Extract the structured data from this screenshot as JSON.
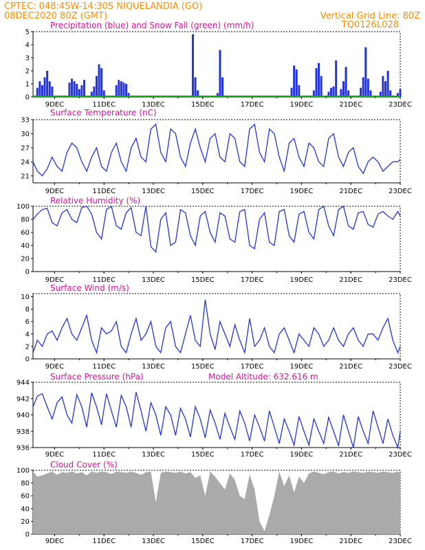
{
  "header": {
    "line1_left": "CPTEC:   048:45W-14:30S   NIQUELANDIA (GO)",
    "line2_left": "08DEC2020 80Z (GMT)",
    "line1_right": "Vertical Grid Line: 80Z",
    "line2_right": "TQ0126L028"
  },
  "colors": {
    "header": "#ff8c00",
    "title": "#e0119c",
    "line": "#2233dd",
    "snow": "#11aa11",
    "cloud": "#aaaaaa"
  },
  "x_ticks": [
    "9DEC",
    "11DEC",
    "13DEC",
    "15DEC",
    "17DEC",
    "19DEC",
    "21DEC",
    "23DEC"
  ],
  "chart_data": [
    {
      "id": "precip",
      "type": "bar",
      "title": "Precipitation (blue) and Snow Fall (green) (mm/h)",
      "ylim": [
        0,
        5
      ],
      "yticks": [
        "0",
        "1",
        "2",
        "3",
        "4",
        "5"
      ],
      "x_range_days": [
        8.125,
        23.0
      ],
      "series": [
        {
          "name": "Precipitation",
          "x": [
            8.3,
            8.4,
            8.5,
            8.6,
            8.7,
            8.8,
            8.9,
            9.6,
            9.7,
            9.8,
            9.9,
            10.0,
            10.1,
            10.2,
            10.5,
            10.6,
            10.7,
            10.8,
            10.9,
            11.0,
            11.5,
            11.6,
            11.7,
            11.8,
            11.9,
            12.0,
            14.6,
            14.7,
            14.8,
            15.6,
            15.7,
            15.8,
            18.6,
            18.7,
            18.8,
            18.9,
            19.5,
            19.6,
            19.7,
            19.8,
            20.1,
            20.2,
            20.3,
            20.4,
            20.6,
            20.7,
            20.8,
            20.9,
            21.4,
            21.5,
            21.6,
            21.7,
            21.8,
            22.2,
            22.3,
            22.4,
            22.5,
            22.6,
            22.9,
            23.0
          ],
          "values": [
            0.7,
            1.2,
            0.9,
            1.5,
            2.0,
            1.2,
            0.8,
            1.1,
            1.4,
            1.2,
            1.0,
            0.6,
            0.9,
            1.3,
            0.4,
            0.8,
            1.6,
            2.5,
            2.2,
            0.5,
            0.9,
            1.3,
            1.2,
            1.1,
            1.0,
            0.3,
            4.8,
            1.5,
            0.5,
            0.3,
            3.6,
            1.5,
            0.7,
            2.4,
            2.1,
            0.9,
            0.5,
            2.2,
            2.6,
            1.6,
            0.4,
            0.7,
            0.8,
            2.8,
            0.6,
            1.2,
            2.3,
            0.5,
            0.7,
            1.5,
            3.8,
            1.4,
            0.5,
            0.4,
            1.6,
            1.2,
            2.0,
            0.5,
            0.3,
            0.6
          ]
        },
        {
          "name": "Snow Fall",
          "values": [
            0
          ]
        }
      ]
    },
    {
      "id": "temp",
      "type": "line",
      "title": "Surface Temperature (nC)",
      "ylim": [
        19.5,
        33
      ],
      "yticks": [
        "21",
        "24",
        "27",
        "30",
        "33"
      ],
      "x": [
        8.125,
        8.3,
        8.5,
        8.7,
        8.9,
        9.1,
        9.3,
        9.5,
        9.7,
        9.9,
        10.1,
        10.3,
        10.5,
        10.7,
        10.9,
        11.1,
        11.3,
        11.5,
        11.7,
        11.9,
        12.1,
        12.3,
        12.5,
        12.7,
        12.9,
        13.1,
        13.3,
        13.5,
        13.7,
        13.9,
        14.1,
        14.3,
        14.5,
        14.7,
        14.9,
        15.1,
        15.3,
        15.5,
        15.7,
        15.9,
        16.1,
        16.3,
        16.5,
        16.7,
        16.9,
        17.1,
        17.3,
        17.5,
        17.7,
        17.9,
        18.1,
        18.3,
        18.5,
        18.7,
        18.9,
        19.1,
        19.3,
        19.5,
        19.7,
        19.9,
        20.1,
        20.3,
        20.5,
        20.7,
        20.9,
        21.1,
        21.3,
        21.5,
        21.7,
        21.9,
        22.1,
        22.3,
        22.5,
        22.7,
        22.9,
        23.0
      ],
      "values": [
        24,
        22,
        21,
        22.5,
        25,
        23,
        22,
        26,
        28,
        27,
        24,
        22,
        25,
        27,
        23,
        22,
        26,
        28,
        24,
        22,
        27,
        29,
        25,
        24,
        31,
        32,
        26,
        24,
        31,
        30,
        25,
        23,
        28,
        31,
        27,
        24,
        29,
        30,
        25,
        24,
        30,
        29,
        24,
        23,
        31,
        32,
        26,
        24,
        31,
        30,
        25,
        22,
        28,
        29,
        25,
        23,
        28,
        27,
        24,
        23,
        29,
        30,
        25,
        23,
        26,
        27,
        23,
        21.5,
        24,
        25,
        24,
        22,
        23,
        24,
        24,
        24.5
      ]
    },
    {
      "id": "rh",
      "type": "line",
      "title": "Relative Humidity (%)",
      "ylim": [
        0,
        100
      ],
      "yticks": [
        "0",
        "20",
        "40",
        "60",
        "80",
        "100"
      ],
      "x": [
        8.125,
        8.3,
        8.5,
        8.7,
        8.9,
        9.1,
        9.3,
        9.5,
        9.7,
        9.9,
        10.1,
        10.3,
        10.5,
        10.7,
        10.9,
        11.1,
        11.3,
        11.5,
        11.7,
        11.9,
        12.1,
        12.3,
        12.5,
        12.7,
        12.9,
        13.1,
        13.3,
        13.5,
        13.7,
        13.9,
        14.1,
        14.3,
        14.5,
        14.7,
        14.9,
        15.1,
        15.3,
        15.5,
        15.7,
        15.9,
        16.1,
        16.3,
        16.5,
        16.7,
        16.9,
        17.1,
        17.3,
        17.5,
        17.7,
        17.9,
        18.1,
        18.3,
        18.5,
        18.7,
        18.9,
        19.1,
        19.3,
        19.5,
        19.7,
        19.9,
        20.1,
        20.3,
        20.5,
        20.7,
        20.9,
        21.1,
        21.3,
        21.5,
        21.7,
        21.9,
        22.1,
        22.3,
        22.5,
        22.7,
        22.9,
        23.0
      ],
      "values": [
        80,
        88,
        95,
        97,
        75,
        70,
        90,
        95,
        80,
        75,
        98,
        100,
        88,
        60,
        50,
        95,
        100,
        70,
        65,
        90,
        98,
        60,
        55,
        100,
        38,
        30,
        80,
        90,
        40,
        45,
        95,
        90,
        55,
        40,
        85,
        92,
        60,
        45,
        90,
        85,
        50,
        45,
        92,
        95,
        40,
        35,
        80,
        90,
        45,
        40,
        92,
        95,
        55,
        45,
        88,
        92,
        60,
        50,
        95,
        100,
        70,
        55,
        95,
        100,
        70,
        65,
        90,
        92,
        72,
        68,
        88,
        92,
        85,
        80,
        92,
        85
      ]
    },
    {
      "id": "wind",
      "type": "line",
      "title": "Surface Wind (m/s)",
      "ylim": [
        0,
        10.5
      ],
      "yticks": [
        "0",
        "2",
        "4",
        "6",
        "8",
        "10"
      ],
      "x": [
        8.125,
        8.3,
        8.5,
        8.7,
        8.9,
        9.1,
        9.3,
        9.5,
        9.7,
        9.9,
        10.1,
        10.3,
        10.5,
        10.7,
        10.9,
        11.1,
        11.3,
        11.5,
        11.7,
        11.9,
        12.1,
        12.3,
        12.5,
        12.7,
        12.9,
        13.1,
        13.3,
        13.5,
        13.7,
        13.9,
        14.1,
        14.3,
        14.5,
        14.7,
        14.9,
        15.1,
        15.3,
        15.5,
        15.7,
        15.9,
        16.1,
        16.3,
        16.5,
        16.7,
        16.9,
        17.1,
        17.3,
        17.5,
        17.7,
        17.9,
        18.1,
        18.3,
        18.5,
        18.7,
        18.9,
        19.1,
        19.3,
        19.5,
        19.7,
        19.9,
        20.1,
        20.3,
        20.5,
        20.7,
        20.9,
        21.1,
        21.3,
        21.5,
        21.7,
        21.9,
        22.1,
        22.3,
        22.5,
        22.7,
        22.9,
        23.0
      ],
      "values": [
        1,
        3,
        2,
        4,
        4.5,
        3,
        5,
        6.5,
        4,
        3,
        5,
        7,
        3,
        1,
        5,
        4,
        4.5,
        6,
        2,
        1,
        4,
        6.5,
        3,
        4,
        6,
        2,
        1,
        5,
        6,
        2,
        1,
        4,
        7,
        3,
        2,
        9.5,
        4,
        1.5,
        6,
        4,
        2,
        5.5,
        3,
        1,
        6.5,
        2,
        3,
        5,
        2,
        1,
        4,
        5,
        3,
        1,
        4,
        3,
        2,
        5,
        4,
        2,
        3,
        5,
        3,
        2,
        4,
        5,
        3,
        2,
        4,
        4,
        3,
        5,
        6.5,
        3,
        1,
        2
      ]
    },
    {
      "id": "pressure",
      "type": "line",
      "title": "Surface Pressure (hPa)",
      "annotation": "Model Altitude: 632.616 m",
      "ylim": [
        936,
        944
      ],
      "yticks": [
        "936",
        "938",
        "940",
        "942",
        "944"
      ],
      "x": [
        8.125,
        8.3,
        8.5,
        8.7,
        8.9,
        9.1,
        9.3,
        9.5,
        9.7,
        9.9,
        10.1,
        10.3,
        10.5,
        10.7,
        10.9,
        11.1,
        11.3,
        11.5,
        11.7,
        11.9,
        12.1,
        12.3,
        12.5,
        12.7,
        12.9,
        13.1,
        13.3,
        13.5,
        13.7,
        13.9,
        14.1,
        14.3,
        14.5,
        14.7,
        14.9,
        15.1,
        15.3,
        15.5,
        15.7,
        15.9,
        16.1,
        16.3,
        16.5,
        16.7,
        16.9,
        17.1,
        17.3,
        17.5,
        17.7,
        17.9,
        18.1,
        18.3,
        18.5,
        18.7,
        18.9,
        19.1,
        19.3,
        19.5,
        19.7,
        19.9,
        20.1,
        20.3,
        20.5,
        20.7,
        20.9,
        21.1,
        21.3,
        21.5,
        21.7,
        21.9,
        22.1,
        22.3,
        22.5,
        22.7,
        22.9,
        23.0
      ],
      "values": [
        941,
        942.3,
        942.6,
        941,
        939.5,
        941.5,
        942.2,
        940,
        939,
        942.5,
        941,
        938.5,
        942.7,
        941,
        938.8,
        942.6,
        940.5,
        938.5,
        942.4,
        941,
        938.5,
        942.8,
        940.5,
        938,
        941.5,
        940,
        937.5,
        941,
        940,
        937.5,
        940.8,
        939.5,
        937.3,
        941,
        939.5,
        937.2,
        940.6,
        939,
        937,
        940.2,
        938.5,
        937,
        940.5,
        939,
        936.8,
        940,
        938.5,
        936.8,
        940.5,
        938.5,
        936.5,
        939.5,
        938,
        936.3,
        939.8,
        938,
        936.3,
        939.5,
        938,
        936.5,
        939.7,
        938,
        936.2,
        940,
        938,
        936,
        939.8,
        938,
        936.5,
        940.5,
        938.5,
        936.5,
        939.5,
        937.5,
        936,
        938
      ]
    },
    {
      "id": "cloud",
      "type": "area",
      "title": "Cloud Cover (%)",
      "ylim": [
        0,
        100
      ],
      "yticks": [
        "0",
        "20",
        "40",
        "60",
        "80",
        "100"
      ],
      "x": [
        8.125,
        8.3,
        8.5,
        8.7,
        8.9,
        9.1,
        9.3,
        9.5,
        9.7,
        9.9,
        10.1,
        10.3,
        10.5,
        10.7,
        10.9,
        11.1,
        11.3,
        11.5,
        11.7,
        11.9,
        12.1,
        12.3,
        12.5,
        12.7,
        12.9,
        13.1,
        13.3,
        13.5,
        13.7,
        13.9,
        14.1,
        14.3,
        14.5,
        14.7,
        14.9,
        15.1,
        15.3,
        15.5,
        15.7,
        15.9,
        16.1,
        16.3,
        16.5,
        16.7,
        16.9,
        17.1,
        17.3,
        17.5,
        17.7,
        17.9,
        18.1,
        18.3,
        18.5,
        18.7,
        18.9,
        19.1,
        19.3,
        19.5,
        19.7,
        19.9,
        20.1,
        20.3,
        20.5,
        20.7,
        20.9,
        21.1,
        21.3,
        21.5,
        21.7,
        21.9,
        22.1,
        22.3,
        22.5,
        22.7,
        22.9,
        23.0
      ],
      "values": [
        98,
        90,
        92,
        95,
        98,
        93,
        97,
        96,
        98,
        95,
        97,
        92,
        98,
        96,
        98,
        97,
        94,
        98,
        97,
        96,
        98,
        96,
        93,
        97,
        98,
        50,
        96,
        98,
        97,
        96,
        98,
        95,
        97,
        88,
        92,
        60,
        98,
        90,
        80,
        70,
        95,
        85,
        60,
        55,
        93,
        70,
        20,
        5,
        30,
        60,
        98,
        75,
        92,
        65,
        90,
        80,
        95,
        98,
        96,
        94,
        97,
        98,
        95,
        97,
        96,
        98,
        97,
        96,
        98,
        97,
        96,
        98,
        97,
        96,
        98,
        95
      ]
    }
  ]
}
